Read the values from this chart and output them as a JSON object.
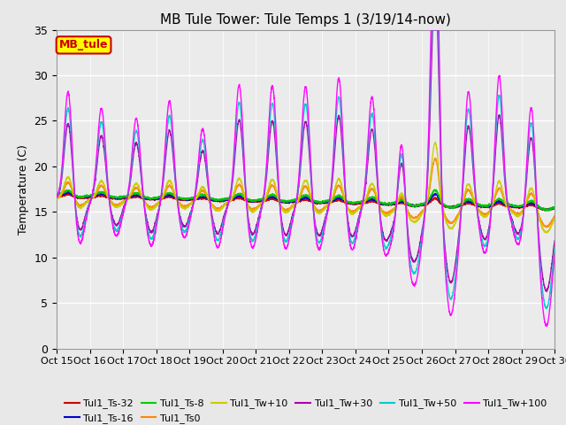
{
  "title": "MB Tule Tower: Tule Temps 1 (3/19/14-now)",
  "ylabel": "Temperature (C)",
  "ylim": [
    0,
    35
  ],
  "yticks": [
    0,
    5,
    10,
    15,
    20,
    25,
    30,
    35
  ],
  "legend_box_label": "MB_tule",
  "legend_box_color": "#ffff00",
  "legend_box_border": "#cc0000",
  "bg_color": "#e8e8e8",
  "plot_bg_color": "#ebebeb",
  "series": [
    {
      "label": "Tul1_Ts-32",
      "color": "#cc0000",
      "lw": 1.0,
      "daily_amp": 0.05,
      "spike_amp": 0.02,
      "base": 16.7
    },
    {
      "label": "Tul1_Ts-16",
      "color": "#0000cc",
      "lw": 1.0,
      "daily_amp": 0.06,
      "spike_amp": 0.03,
      "base": 16.8
    },
    {
      "label": "Tul1_Ts-8",
      "color": "#00cc00",
      "lw": 1.0,
      "daily_amp": 0.1,
      "spike_amp": 0.04,
      "base": 16.9
    },
    {
      "label": "Tul1_Ts0",
      "color": "#ff8800",
      "lw": 1.0,
      "daily_amp": 0.4,
      "spike_amp": 0.15,
      "base": 16.5
    },
    {
      "label": "Tul1_Tw+10",
      "color": "#cccc00",
      "lw": 1.0,
      "daily_amp": 0.5,
      "spike_amp": 0.2,
      "base": 16.5
    },
    {
      "label": "Tul1_Tw+30",
      "color": "#aa00aa",
      "lw": 1.0,
      "daily_amp": 0.8,
      "spike_amp": 0.7,
      "base": 16.5
    },
    {
      "label": "Tul1_Tw+50",
      "color": "#00cccc",
      "lw": 1.0,
      "daily_amp": 0.9,
      "spike_amp": 0.85,
      "base": 16.5
    },
    {
      "label": "Tul1_Tw+100",
      "color": "#ff00ff",
      "lw": 1.0,
      "daily_amp": 1.0,
      "spike_amp": 1.0,
      "base": 16.5
    }
  ],
  "xtick_labels": [
    "Oct 15",
    "Oct 16",
    "Oct 17",
    "Oct 18",
    "Oct 19",
    "Oct 20",
    "Oct 21",
    "Oct 22",
    "Oct 23",
    "Oct 24",
    "Oct 25",
    "Oct 26",
    "Oct 27",
    "Oct 28",
    "Oct 29",
    "Oct 30"
  ],
  "xtick_positions": [
    0,
    1,
    2,
    3,
    4,
    5,
    6,
    7,
    8,
    9,
    10,
    11,
    12,
    13,
    14,
    15
  ],
  "spike_peaks": [
    0.35,
    1.35,
    2.4,
    3.4,
    4.4,
    5.5,
    6.5,
    7.5,
    8.5,
    9.5,
    10.4,
    11.4,
    12.4,
    13.3,
    14.3
  ],
  "spike_heights": [
    12,
    10,
    9,
    11,
    8,
    13,
    13,
    13,
    14,
    12,
    14,
    14,
    13,
    8,
    12
  ],
  "spike_widths": [
    0.12,
    0.12,
    0.12,
    0.12,
    0.12,
    0.12,
    0.12,
    0.12,
    0.12,
    0.12,
    0.12,
    0.12,
    0.12,
    0.12,
    0.12
  ],
  "trough_times": [
    0.7,
    1.8,
    2.85,
    3.85,
    4.85,
    5.9,
    6.9,
    7.9,
    8.9,
    9.9,
    10.85,
    11.85,
    12.9,
    13.9,
    14.85
  ],
  "trough_depths": [
    5,
    4,
    5,
    4,
    5,
    5,
    5,
    5,
    5,
    5,
    5,
    5,
    5,
    4,
    4
  ],
  "late_drop_start": 10.2,
  "late_drop_end": 10.6,
  "late_drop_depth": 8,
  "late_drop2_start": 12.6,
  "late_drop2_end": 13.1,
  "late_drop2_depth": 9,
  "end_drop_start": 14.5,
  "end_drop_depth": 10
}
